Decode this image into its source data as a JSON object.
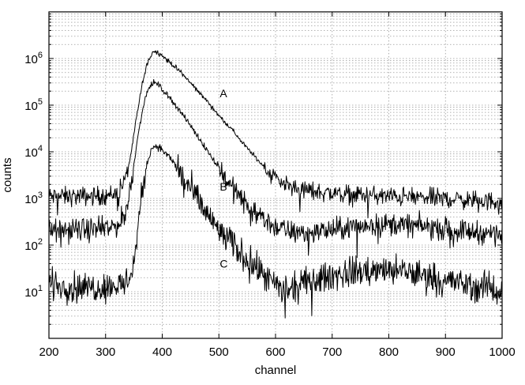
{
  "chart_data": {
    "type": "line",
    "xlabel": "channel",
    "ylabel": "counts",
    "xlim": [
      200,
      1000
    ],
    "ylim": [
      1,
      10000000
    ],
    "yscale": "log",
    "grid": true,
    "x_ticks": [
      200,
      300,
      400,
      500,
      600,
      700,
      800,
      900,
      1000
    ],
    "y_ticks": [
      {
        "value": 10,
        "base": "10",
        "exp": "1"
      },
      {
        "value": 100,
        "base": "10",
        "exp": "2"
      },
      {
        "value": 1000,
        "base": "10",
        "exp": "3"
      },
      {
        "value": 10000,
        "base": "10",
        "exp": "4"
      },
      {
        "value": 100000,
        "base": "10",
        "exp": "5"
      },
      {
        "value": 1000000,
        "base": "10",
        "exp": "6"
      }
    ],
    "series": [
      {
        "name": "A",
        "label_at": {
          "x": 510,
          "y": 180000
        },
        "noise": 0.1,
        "x": [
          200,
          250,
          300,
          320,
          335,
          345,
          355,
          365,
          375,
          385,
          395,
          410,
          430,
          450,
          475,
          500,
          525,
          550,
          575,
          600,
          625,
          650,
          700,
          750,
          800,
          850,
          900,
          950,
          1000
        ],
        "values": [
          1100,
          1100,
          1150,
          1300,
          2500,
          9000,
          60000,
          300000,
          900000,
          1450000,
          1300000,
          900000,
          550000,
          300000,
          140000,
          60000,
          28000,
          12000,
          5500,
          2800,
          1800,
          1500,
          1300,
          1200,
          1100,
          1050,
          1000,
          900,
          850
        ]
      },
      {
        "name": "B",
        "label_at": {
          "x": 510,
          "y": 1800
        },
        "noise": 0.12,
        "x": [
          200,
          250,
          300,
          320,
          335,
          345,
          355,
          365,
          375,
          385,
          395,
          410,
          430,
          450,
          475,
          500,
          525,
          550,
          575,
          600,
          625,
          650,
          700,
          750,
          800,
          850,
          900,
          950,
          1000
        ],
        "values": [
          200,
          210,
          220,
          260,
          450,
          2000,
          15000,
          80000,
          220000,
          310000,
          260000,
          160000,
          80000,
          36000,
          13000,
          4500,
          1600,
          700,
          380,
          250,
          190,
          180,
          210,
          260,
          280,
          260,
          220,
          190,
          170
        ]
      },
      {
        "name": "C",
        "label_at": {
          "x": 510,
          "y": 40
        },
        "noise": 0.16,
        "x": [
          200,
          250,
          300,
          330,
          340,
          350,
          360,
          370,
          380,
          388,
          400,
          420,
          440,
          460,
          480,
          500,
          525,
          550,
          575,
          600,
          625,
          650,
          700,
          750,
          800,
          850,
          900,
          950,
          1000
        ],
        "values": [
          15,
          12,
          13,
          14,
          18,
          40,
          500,
          4000,
          11000,
          14000,
          11000,
          6000,
          2500,
          1000,
          450,
          200,
          100,
          50,
          25,
          13,
          10,
          15,
          22,
          28,
          28,
          24,
          18,
          13,
          11
        ]
      }
    ]
  }
}
